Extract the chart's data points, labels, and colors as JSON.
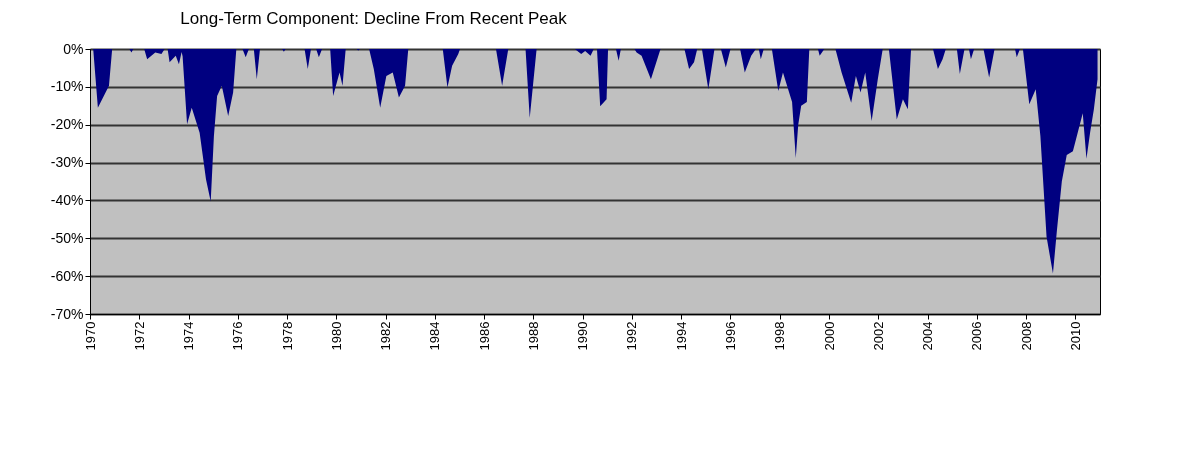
{
  "chart_data": {
    "type": "area",
    "title": "Long-Term Component: Decline From Recent Peak",
    "x": [
      1970.0,
      1970.13,
      1970.32,
      1970.77,
      1970.9,
      1971.6,
      1971.68,
      1971.76,
      1972.2,
      1972.32,
      1972.65,
      1972.9,
      1973.03,
      1973.15,
      1973.23,
      1973.48,
      1973.61,
      1973.72,
      1973.76,
      1973.94,
      1974.13,
      1974.45,
      1974.71,
      1974.9,
      1975.03,
      1975.16,
      1975.35,
      1975.61,
      1975.81,
      1975.94,
      1976.19,
      1976.32,
      1976.45,
      1976.65,
      1976.77,
      1976.9,
      1977.8,
      1977.87,
      1977.94,
      1978.71,
      1978.84,
      1978.97,
      1979.18,
      1979.29,
      1979.42,
      1979.75,
      1979.87,
      1980.13,
      1980.25,
      1980.38,
      1980.82,
      1980.89,
      1980.96,
      1981.33,
      1981.52,
      1981.78,
      1982.03,
      1982.29,
      1982.54,
      1982.79,
      1982.92,
      1984.32,
      1984.51,
      1984.7,
      1984.95,
      1985.02,
      1986.48,
      1986.73,
      1986.98,
      1987.68,
      1987.85,
      1988.13,
      1989.68,
      1989.94,
      1990.1,
      1990.32,
      1990.45,
      1990.58,
      1990.71,
      1990.97,
      1991.03,
      1991.35,
      1991.46,
      1991.55,
      1992.1,
      1992.19,
      1992.39,
      1992.77,
      1993.16,
      1994.13,
      1994.32,
      1994.52,
      1994.65,
      1994.84,
      1995.1,
      1995.35,
      1995.61,
      1995.81,
      1996.0,
      1996.39,
      1996.58,
      1996.84,
      1997.03,
      1997.15,
      1997.23,
      1997.35,
      1997.68,
      1997.94,
      1998.13,
      1998.5,
      1998.65,
      1998.75,
      1998.87,
      1999.1,
      1999.2,
      1999.55,
      1999.62,
      1999.81,
      2000.26,
      2000.51,
      2000.9,
      2001.09,
      2001.28,
      2001.47,
      2001.73,
      2001.98,
      2002.18,
      2002.43,
      2002.75,
      2003.0,
      2003.2,
      2003.33,
      2004.22,
      2004.42,
      2004.61,
      2004.74,
      2005.19,
      2005.31,
      2005.5,
      2005.68,
      2005.76,
      2005.89,
      2006.27,
      2006.5,
      2006.72,
      2007.55,
      2007.62,
      2007.75,
      2007.87,
      2008.13,
      2008.39,
      2008.58,
      2008.83,
      2009.09,
      2009.25,
      2009.45,
      2009.65,
      2009.9,
      2010.1,
      2010.3,
      2010.45,
      2010.6,
      2010.75,
      2010.9
    ],
    "series": [
      {
        "color": "#000080",
        "values": [
          0,
          0,
          -15.5,
          -9.7,
          0,
          0,
          -0.9,
          0,
          0,
          -2.7,
          -0.9,
          -1.3,
          0,
          0,
          -3.5,
          -1.8,
          -4,
          -0.8,
          -2,
          -19.9,
          -15.5,
          -22.1,
          -34.5,
          -40.3,
          -23,
          -12.4,
          -9.7,
          -17.7,
          -11.5,
          0,
          0,
          -2.2,
          0,
          0,
          -8,
          0,
          0,
          -0.7,
          0,
          0,
          -5.3,
          0,
          0,
          -2.2,
          0,
          0,
          -12.4,
          -6.2,
          -9.7,
          0,
          0,
          -0.4,
          0,
          0,
          -5.3,
          -15.5,
          -7.1,
          -6.2,
          -12.8,
          -9.7,
          0,
          0,
          -10.2,
          -4.4,
          -1.3,
          0,
          0,
          -9.7,
          0,
          0,
          -18.2,
          0,
          0,
          -1.3,
          -0.5,
          -1.8,
          0,
          0,
          -15.1,
          -13.3,
          0,
          0,
          -3.1,
          0,
          0,
          -0.9,
          -1.8,
          -8,
          0,
          0,
          -5.3,
          -3.5,
          0,
          0,
          -10.6,
          0,
          0,
          -4.9,
          0,
          0,
          -6.2,
          -1.8,
          0,
          0,
          -2.7,
          0,
          0,
          -11.1,
          -6.2,
          -14,
          -28.8,
          -20,
          -15,
          -14,
          0,
          0,
          -1.8,
          0,
          0,
          -6.2,
          -14.2,
          -7.1,
          -11.5,
          -6.2,
          -19,
          -8,
          0,
          0,
          -18.6,
          -13.3,
          -15.9,
          0,
          0,
          -5.3,
          -2.7,
          0,
          0,
          -6.6,
          0,
          0,
          -2.7,
          0,
          0,
          -7.5,
          0,
          0,
          -2.2,
          0,
          0,
          -14.6,
          -10.6,
          -23,
          -49.6,
          -59.3,
          -48,
          -35,
          -28,
          -27,
          -22,
          -17,
          -29,
          -22,
          -16,
          -8
        ]
      }
    ],
    "xlim": [
      1970,
      2011
    ],
    "xticks": [
      1970,
      1972,
      1974,
      1976,
      1978,
      1980,
      1982,
      1984,
      1986,
      1988,
      1990,
      1992,
      1994,
      1996,
      1998,
      2000,
      2002,
      2004,
      2006,
      2008,
      2010
    ],
    "ylim": [
      -70,
      0
    ],
    "yticks": [
      {
        "value": 0,
        "label": "0%"
      },
      {
        "value": -10,
        "label": "-10%"
      },
      {
        "value": -20,
        "label": "-20%"
      },
      {
        "value": -30,
        "label": "-30%"
      },
      {
        "value": -40,
        "label": "-40%"
      },
      {
        "value": -50,
        "label": "-50%"
      },
      {
        "value": -60,
        "label": "-60%"
      },
      {
        "value": -70,
        "label": "-70%"
      }
    ],
    "grid": "y"
  }
}
